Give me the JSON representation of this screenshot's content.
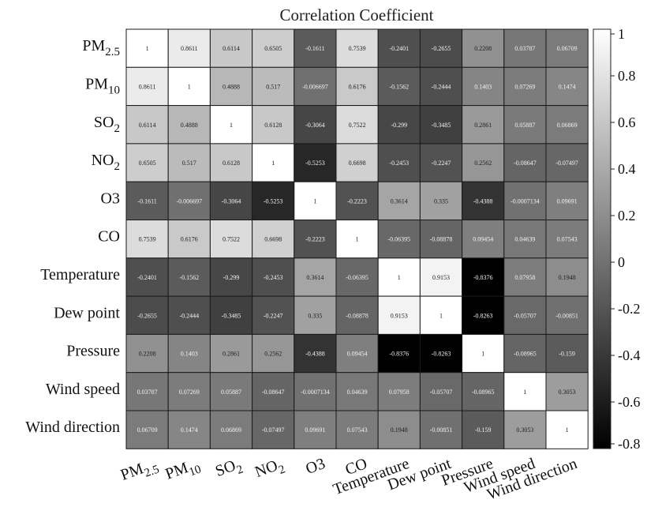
{
  "chart_data": {
    "type": "heatmap",
    "title": "Correlation Coefficient",
    "rows": [
      {
        "label": "PM",
        "sub": "2.5"
      },
      {
        "label": "PM",
        "sub": "10"
      },
      {
        "label": "SO",
        "sub": "2"
      },
      {
        "label": "NO",
        "sub": "2"
      },
      {
        "label": "O3",
        "sub": ""
      },
      {
        "label": "CO",
        "sub": ""
      },
      {
        "label": "Temperature",
        "sub": ""
      },
      {
        "label": "Dew point",
        "sub": ""
      },
      {
        "label": "Pressure",
        "sub": ""
      },
      {
        "label": "Wind speed",
        "sub": ""
      },
      {
        "label": "Wind direction",
        "sub": ""
      }
    ],
    "columns": [
      {
        "label": "PM",
        "sub": "2.5"
      },
      {
        "label": "PM",
        "sub": "10"
      },
      {
        "label": "SO",
        "sub": "2"
      },
      {
        "label": "NO",
        "sub": "2"
      },
      {
        "label": "O3",
        "sub": ""
      },
      {
        "label": "CO",
        "sub": ""
      },
      {
        "label": "Temperature",
        "sub": ""
      },
      {
        "label": "Dew point",
        "sub": ""
      },
      {
        "label": "Pressure",
        "sub": ""
      },
      {
        "label": "Wind speed",
        "sub": ""
      },
      {
        "label": "Wind direction",
        "sub": ""
      }
    ],
    "values": [
      [
        "1",
        "0.8611",
        "0.6114",
        "0.6505",
        "-0.1611",
        "0.7539",
        "-0.2401",
        "-0.2655",
        "0.2208",
        "0.03787",
        "0.06709"
      ],
      [
        "0.8611",
        "1",
        "0.4888",
        "0.517",
        "-0.006697",
        "0.6176",
        "-0.1562",
        "-0.2444",
        "0.1403",
        "0.07269",
        "0.1474"
      ],
      [
        "0.6114",
        "0.4888",
        "1",
        "0.6128",
        "-0.3064",
        "0.7522",
        "-0.299",
        "-0.3485",
        "0.2861",
        "0.05887",
        "0.06869"
      ],
      [
        "0.6505",
        "0.517",
        "0.6128",
        "1",
        "-0.5253",
        "0.6698",
        "-0.2453",
        "-0.2247",
        "0.2562",
        "-0.08647",
        "-0.07497"
      ],
      [
        "-0.1611",
        "-0.006697",
        "-0.3064",
        "-0.5253",
        "1",
        "-0.2223",
        "0.3614",
        "0.335",
        "-0.4388",
        "-0.0007134",
        "0.09691"
      ],
      [
        "0.7539",
        "0.6176",
        "0.7522",
        "0.6698",
        "-0.2223",
        "1",
        "-0.06395",
        "-0.08878",
        "0.09454",
        "0.04639",
        "0.07543"
      ],
      [
        "-0.2401",
        "-0.1562",
        "-0.299",
        "-0.2453",
        "0.3614",
        "-0.06395",
        "1",
        "0.9153",
        "-0.8376",
        "0.07958",
        "0.1948"
      ],
      [
        "-0.2655",
        "-0.2444",
        "-0.3485",
        "-0.2247",
        "0.335",
        "-0.08878",
        "0.9153",
        "1",
        "-0.8263",
        "-0.05707",
        "-0.00851"
      ],
      [
        "0.2208",
        "0.1403",
        "0.2861",
        "0.2562",
        "-0.4388",
        "0.09454",
        "-0.8376",
        "-0.8263",
        "1",
        "-0.08965",
        "-0.159"
      ],
      [
        "0.03787",
        "0.07269",
        "0.05887",
        "-0.08647",
        "-0.0007134",
        "0.04639",
        "0.07958",
        "-0.05707",
        "-0.08965",
        "1",
        "0.3053"
      ],
      [
        "0.06709",
        "0.1474",
        "0.06869",
        "-0.07497",
        "0.09691",
        "0.07543",
        "0.1948",
        "-0.00851",
        "-0.159",
        "0.3053",
        "1"
      ]
    ],
    "colorbar": {
      "min": -0.8,
      "max": 1,
      "ticks": [
        "1",
        "0.8",
        "0.6",
        "0.4",
        "0.2",
        "0",
        "-0.2",
        "-0.4",
        "-0.6",
        "-0.8"
      ],
      "colormap": "gray",
      "low_color": "#000000",
      "high_color": "#ffffff"
    }
  }
}
